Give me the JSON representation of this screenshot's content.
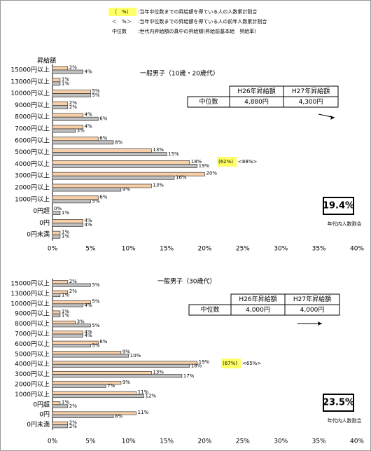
{
  "legend": [
    {
      "key": "（　%）",
      "text": ":当年中位数までの昇給額を得ている人の人数累計割合"
    },
    {
      "key": "＜　%＞",
      "text": ":当年中位数までの昇給額を得ている人の前年人数累計割合"
    },
    {
      "key": "中位数",
      "text": ":世代内昇給額の真中の昇給額(昇給前基本給　昇給率)"
    }
  ],
  "chart_data": [
    {
      "type": "bar",
      "orientation": "horizontal",
      "title": "一般男子（10歳・20歳代）",
      "y_label": "昇給額",
      "categories": [
        "15000円以上",
        "13000円以上",
        "10000円以上",
        "9000円以上",
        "8000円以上",
        "7000円以上",
        "6000円以上",
        "5000円以上",
        "4000円以上",
        "3000円以上",
        "2000円以上",
        "1000円以上",
        "0円超",
        "0円",
        "0円未満"
      ],
      "series": [
        {
          "color": "#f9cfa8",
          "values": [
            2,
            1,
            5,
            2,
            4,
            4,
            6,
            13,
            18,
            20,
            13,
            6,
            0,
            4,
            1
          ],
          "value_labels": [
            "2%",
            "1%",
            "5%",
            "2%",
            "4%",
            "4%",
            "6%",
            "13%",
            "18%",
            "20%",
            "13%",
            "6%",
            "0%",
            "4%",
            "1%"
          ]
        },
        {
          "color": "#bfbfbf",
          "values": [
            4,
            1,
            5,
            2,
            6,
            3,
            8,
            15,
            19,
            16,
            9,
            5,
            1,
            4,
            1
          ],
          "value_labels": [
            "4%",
            "1%",
            "5%",
            "2%",
            "6%",
            "3%",
            "8%",
            "15%",
            "19%",
            "16%",
            "9%",
            "5%",
            "1%",
            "4%",
            "1%"
          ]
        }
      ],
      "xlim": [
        0,
        40
      ],
      "xticks": [
        {
          "value": 0,
          "label": "0%"
        },
        {
          "value": 5,
          "label": "5%"
        },
        {
          "value": 10,
          "label": "10%"
        },
        {
          "value": 15,
          "label": "15%"
        },
        {
          "value": 20,
          "label": "20%"
        },
        {
          "value": 25,
          "label": "25%"
        },
        {
          "value": 30,
          "label": "30%"
        },
        {
          "value": 35,
          "label": "35%"
        },
        {
          "value": 40,
          "label": "40%"
        }
      ],
      "table": {
        "headers": [
          "H26年昇給額",
          "H27年昇給額"
        ],
        "row_label": "中位数",
        "values": [
          "4,880円",
          "4,300円"
        ]
      },
      "annotation": {
        "current": "(62%)",
        "previous": "<88%>"
      },
      "share": {
        "value": "19.4%",
        "label": "年代内人数割合"
      }
    },
    {
      "type": "bar",
      "orientation": "horizontal",
      "title": "一般男子（30歳代）",
      "categories": [
        "15000円以上",
        "13000円以上",
        "10000円以上",
        "9000円以上",
        "8000円以上",
        "7000円以上",
        "6000円以上",
        "5000円以上",
        "4000円以上",
        "3000円以上",
        "2000円以上",
        "1000円以上",
        "0円超",
        "0円",
        "0円未満"
      ],
      "series": [
        {
          "color": "#f9cfa8",
          "values": [
            2,
            2,
            5,
            1,
            3,
            4,
            6,
            9,
            19,
            13,
            9,
            11,
            1,
            11,
            2
          ],
          "value_labels": [
            "2%",
            "2%",
            "5%",
            "1%",
            "3%",
            "4%",
            "6%",
            "9%",
            "19%",
            "13%",
            "9%",
            "11%",
            "1%",
            "11%",
            "2%"
          ]
        },
        {
          "color": "#bfbfbf",
          "values": [
            5,
            1,
            4,
            1,
            5,
            4,
            5,
            10,
            18,
            17,
            7,
            12,
            2,
            8,
            2
          ],
          "value_labels": [
            "5%",
            "1%",
            "4%",
            "1%",
            "5%",
            "4%",
            "5%",
            "10%",
            "18%",
            "17%",
            "7%",
            "12%",
            "2%",
            "8%",
            "2%"
          ]
        }
      ],
      "xlim": [
        0,
        40
      ],
      "xticks": [
        {
          "value": 0,
          "label": "0%"
        },
        {
          "value": 5,
          "label": "5%"
        },
        {
          "value": 10,
          "label": "10%"
        },
        {
          "value": 15,
          "label": "15%"
        },
        {
          "value": 20,
          "label": "20%"
        },
        {
          "value": 25,
          "label": "25%"
        },
        {
          "value": 30,
          "label": "30%"
        },
        {
          "value": 35,
          "label": "35%"
        },
        {
          "value": 40,
          "label": "40%"
        }
      ],
      "table": {
        "headers": [
          "H26年昇給額",
          "H27年昇給額"
        ],
        "row_label": "中位数",
        "values": [
          "4,000円",
          "4,000円"
        ]
      },
      "annotation": {
        "current": "(67%)",
        "previous": "<65%>"
      },
      "share": {
        "value": "23.5%",
        "label": "年代内人数割合"
      }
    }
  ]
}
